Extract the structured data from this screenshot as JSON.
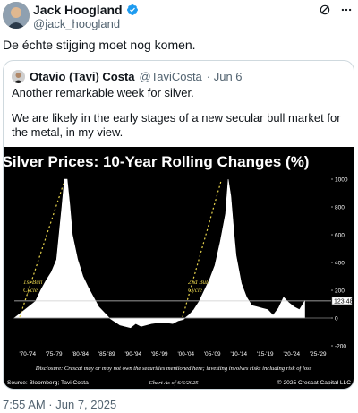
{
  "author": {
    "display_name": "Jack Hoogland",
    "handle": "@jack_hoogland"
  },
  "tweet": {
    "text": "De échte stijging moet nog komen.",
    "timestamp": "7:55 AM · Jun 7, 2025"
  },
  "quoted": {
    "display_name": "Otavio (Tavi) Costa",
    "handle": "@TaviCosta",
    "date": "· Jun 6",
    "paragraphs": [
      "Another remarkable week for silver.",
      "We are likely in the early stages of a new secular bull market for the metal, in my view."
    ]
  },
  "icons": {
    "verified": "verified-badge-icon",
    "grok": "grok-icon",
    "more": "more-options-icon"
  },
  "colors": {
    "verified_blue": "#1d9bf0",
    "chart_background": "#000000",
    "chart_fill": "#ffffff",
    "annotation_yellow": "#e8d44d"
  },
  "chart_data": {
    "type": "area",
    "title": "Silver Prices: 10-Year Rolling Changes (%)",
    "x_tick_labels": [
      "'70-'74",
      "'75-'79",
      "'80-'84",
      "'85-'89",
      "'90-'94",
      "'95-'99",
      "'00-'04",
      "'05-'09",
      "'10-'14",
      "'15-'19",
      "'20-'24",
      "'25-'29"
    ],
    "y_tick_labels": [
      "1000",
      "800",
      "600",
      "400",
      "200",
      "0",
      "-200"
    ],
    "ylim": [
      -200,
      1000
    ],
    "last_value_label": "123.48",
    "x": [
      1970,
      1972,
      1974,
      1975,
      1976,
      1977,
      1978,
      1979,
      1979.5,
      1980,
      1980.5,
      1981,
      1982,
      1983,
      1984,
      1985,
      1986,
      1988,
      1990,
      1992,
      1993,
      1994,
      1996,
      1998,
      2000,
      2001,
      2002,
      2003,
      2004,
      2005,
      2006,
      2007,
      2008,
      2009,
      2010,
      2010.5,
      2011,
      2011.5,
      2012,
      2013,
      2014,
      2015,
      2016,
      2017,
      2018,
      2019,
      2020,
      2021,
      2022,
      2023,
      2024,
      2025
    ],
    "y": [
      0,
      60,
      120,
      200,
      270,
      330,
      420,
      800,
      1000,
      1000,
      820,
      600,
      420,
      300,
      220,
      150,
      80,
      0,
      -50,
      -70,
      -40,
      -60,
      -40,
      -30,
      -40,
      -20,
      -10,
      20,
      60,
      120,
      200,
      280,
      380,
      550,
      750,
      1000,
      880,
      650,
      450,
      250,
      150,
      90,
      80,
      70,
      60,
      20,
      70,
      150,
      110,
      80,
      60,
      123.48
    ],
    "annotations": [
      "1st Bull Cycle",
      "2nd Bull Cycle"
    ],
    "disclosure": "Disclosure: Crescat may or may not own the securities mentioned here; investing involves risks including risk of loss",
    "source": "Source: Bloomberg; Tavi Costa",
    "as_of": "Chart As of 6/6/2025",
    "copyright": "© 2025 Crescat Capital LLC"
  }
}
